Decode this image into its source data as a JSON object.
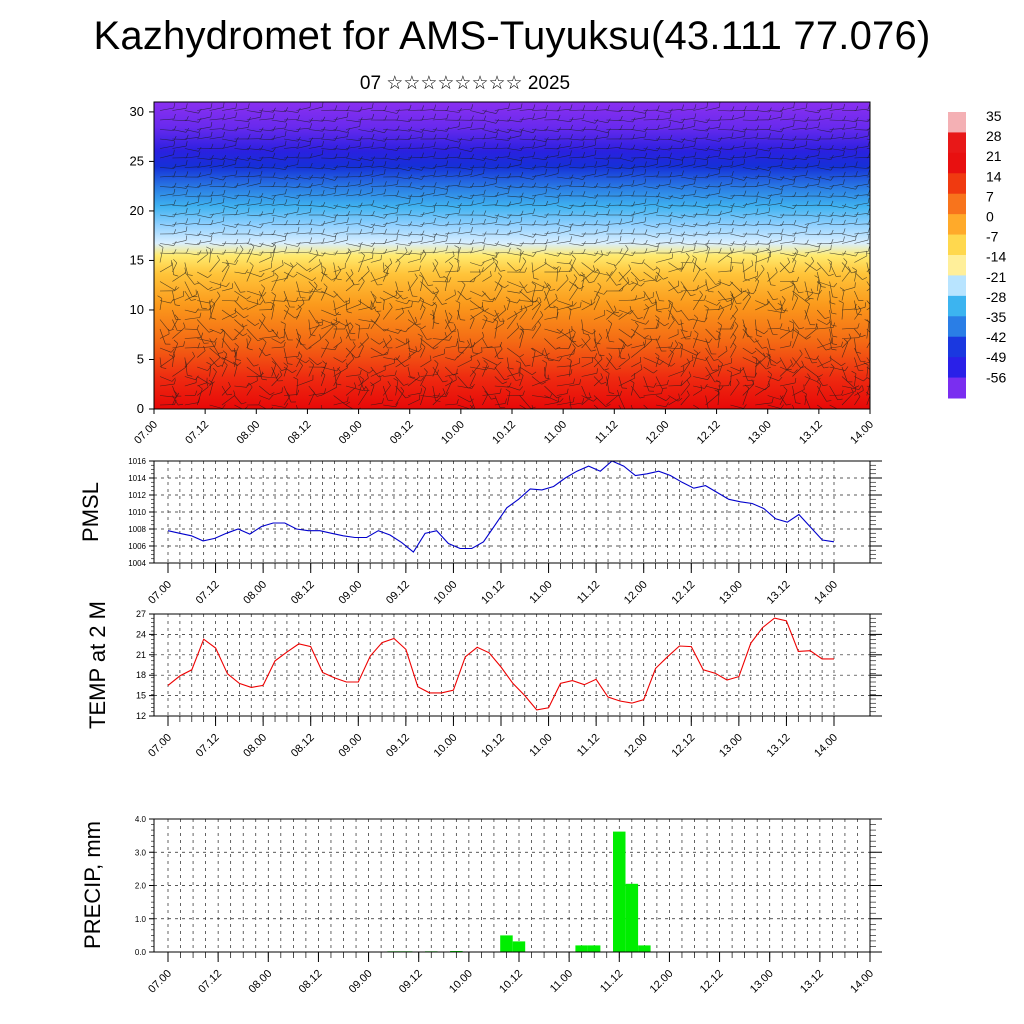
{
  "header": {
    "title": "Kazhydromet for AMS-Tuyuksu(43.111 77.076)",
    "subtitle": "07 ☆☆☆☆☆☆☆☆ 2025"
  },
  "time_ticks": [
    "07.00",
    "07.12",
    "08.00",
    "08.12",
    "09.00",
    "09.12",
    "10.00",
    "10.12",
    "11.00",
    "11.12",
    "12.00",
    "12.12",
    "13.00",
    "13.12",
    "14.00"
  ],
  "chart_data": [
    {
      "type": "heatmap",
      "name": "vertical-section",
      "x_tick_labels": [
        "07.00",
        "07.12",
        "08.00",
        "08.12",
        "09.00",
        "09.12",
        "10.00",
        "10.12",
        "11.00",
        "11.12",
        "12.00",
        "12.12",
        "13.00",
        "13.12",
        "14.00"
      ],
      "y_tick_labels": [
        "0",
        "5",
        "10",
        "15",
        "20",
        "25",
        "30"
      ],
      "ylim": [
        0,
        31
      ],
      "colorbar_labels": [
        "35",
        "28",
        "21",
        "14",
        "7",
        "0",
        "-7",
        "-14",
        "-21",
        "-28",
        "-35",
        "-42",
        "-49",
        "-56"
      ],
      "colors": {
        "warm": "#e6140a",
        "mid_warm": "#ff9a18",
        "yellow": "#ffe46a",
        "cold": "#30b0ee",
        "deep": "#2a2ae0",
        "top": "#7a2ef0"
      }
    },
    {
      "type": "line",
      "name": "pmsl",
      "ylabel": "PMSL",
      "ylim": [
        1004,
        1016
      ],
      "y_tick_labels": [
        "1004",
        "1006",
        "1008",
        "1010",
        "1012",
        "1014",
        "1016"
      ],
      "x_tick_labels": [
        "07.00",
        "07.12",
        "08.00",
        "08.12",
        "09.00",
        "09.12",
        "10.00",
        "10.12",
        "11.00",
        "11.12",
        "12.00",
        "12.12",
        "13.00",
        "13.12",
        "14.00"
      ],
      "color": "#0000cc",
      "values": [
        1007.8,
        1007.5,
        1007.2,
        1006.6,
        1006.9,
        1007.5,
        1008.0,
        1007.4,
        1008.3,
        1008.7,
        1008.7,
        1008.0,
        1007.8,
        1007.8,
        1007.5,
        1007.2,
        1007.0,
        1007.0,
        1007.8,
        1007.3,
        1006.4,
        1005.3,
        1007.5,
        1007.8,
        1006.3,
        1005.7,
        1005.7,
        1006.5,
        1008.5,
        1010.5,
        1011.5,
        1012.7,
        1012.6,
        1013.0,
        1014.0,
        1014.8,
        1015.4,
        1014.8,
        1016.0,
        1015.4,
        1014.3,
        1014.5,
        1014.8,
        1014.3,
        1013.5,
        1012.8,
        1013.1,
        1012.3,
        1011.5,
        1011.2,
        1011.0,
        1010.4,
        1009.2,
        1008.8,
        1009.7,
        1008.2,
        1006.7,
        1006.5
      ]
    },
    {
      "type": "line",
      "name": "temp",
      "ylabel": "TEMP at 2 M",
      "ylim": [
        12,
        27
      ],
      "y_tick_labels": [
        "12",
        "15",
        "18",
        "21",
        "24",
        "27"
      ],
      "x_tick_labels": [
        "07.00",
        "07.12",
        "08.00",
        "08.12",
        "09.00",
        "09.12",
        "10.00",
        "10.12",
        "11.00",
        "11.12",
        "12.00",
        "12.12",
        "13.00",
        "13.12",
        "14.00"
      ],
      "color": "#ee0000",
      "values": [
        16.5,
        17.9,
        18.8,
        23.3,
        22.0,
        18.2,
        16.8,
        16.2,
        16.5,
        20.1,
        21.4,
        22.6,
        22.2,
        18.4,
        17.6,
        17.0,
        17.0,
        20.8,
        22.8,
        23.4,
        21.8,
        16.3,
        15.4,
        15.4,
        15.8,
        20.7,
        22.1,
        21.3,
        19.2,
        16.8,
        15.0,
        12.9,
        13.2,
        16.8,
        17.2,
        16.6,
        17.4,
        14.8,
        14.2,
        13.9,
        14.4,
        19.0,
        20.7,
        22.3,
        22.2,
        18.8,
        18.3,
        17.3,
        17.8,
        22.7,
        25.0,
        26.4,
        26.0,
        21.5,
        21.6,
        20.4,
        20.4
      ]
    },
    {
      "type": "bar",
      "name": "precip",
      "ylabel": "PRECIP, mm",
      "ylim": [
        0,
        4
      ],
      "y_tick_labels": [
        "0.0",
        "1.0",
        "2.0",
        "3.0",
        "4.0"
      ],
      "x_tick_labels": [
        "07.00",
        "07.12",
        "08.00",
        "08.12",
        "09.00",
        "09.12",
        "10.00",
        "10.12",
        "11.00",
        "11.12",
        "12.00",
        "12.12",
        "13.00",
        "13.12",
        "14.00"
      ],
      "color": "#00ee00",
      "values": [
        0,
        0,
        0,
        0,
        0,
        0,
        0,
        0,
        0,
        0,
        0,
        0,
        0,
        0,
        0,
        0,
        0,
        0,
        0.02,
        0.02,
        0,
        0.02,
        0,
        0.03,
        0,
        0,
        0,
        0.5,
        0.32,
        0,
        0,
        0,
        0,
        0.2,
        0.2,
        0,
        3.62,
        2.05,
        0.2,
        0,
        0,
        0,
        0,
        0,
        0,
        0,
        0,
        0,
        0,
        0,
        0,
        0,
        0,
        0,
        0,
        0,
        0
      ]
    }
  ]
}
